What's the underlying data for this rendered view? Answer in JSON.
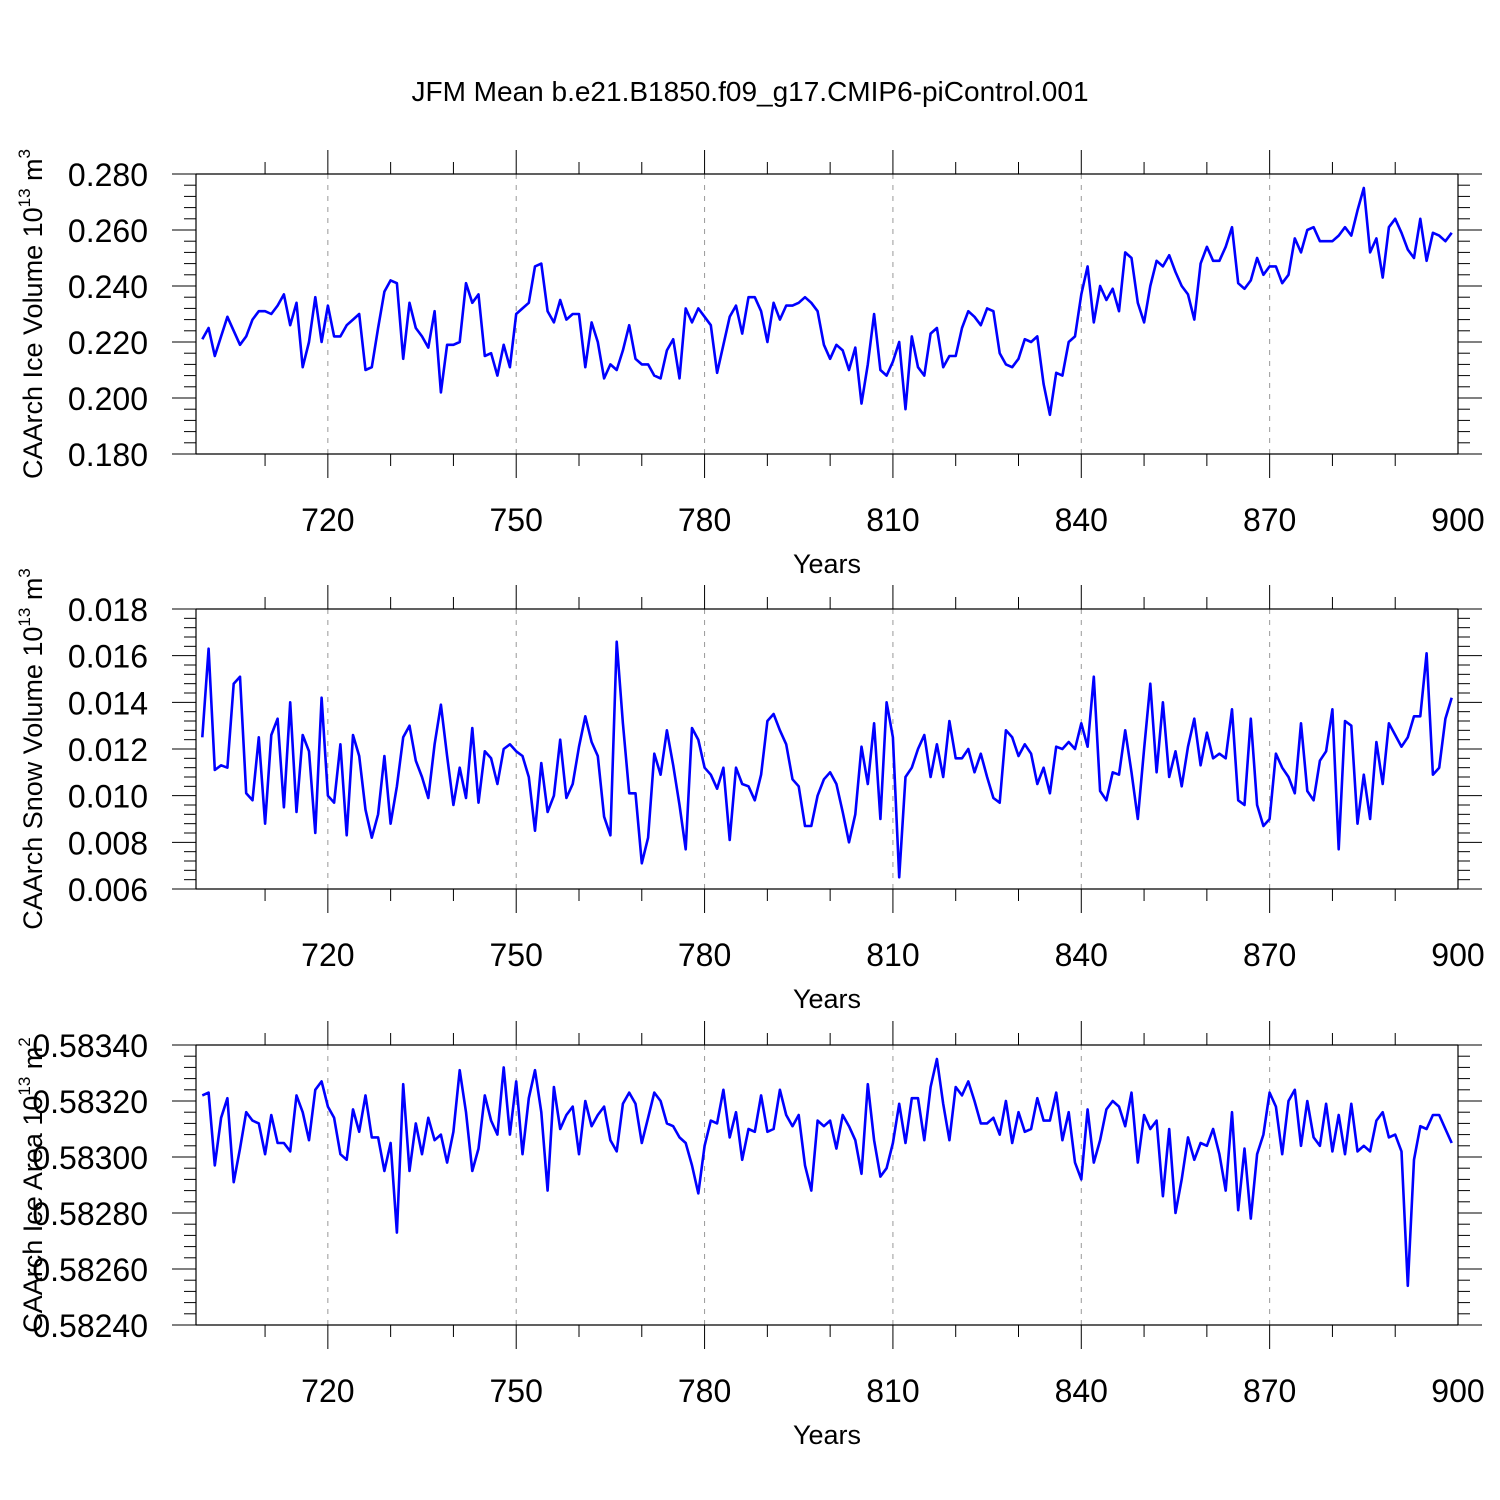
{
  "chart_data": [
    {
      "type": "line",
      "title": "JFM Mean b.e21.B1850.f09_g17.CMIP6-piControl.001",
      "xlabel": "Years",
      "ylabel": {
        "base": "CAArch Ice Volume 10",
        "exp": "13",
        "unit": " m",
        "unitexp": "3"
      },
      "xlim": [
        699,
        900
      ],
      "xticks": [
        720,
        750,
        780,
        810,
        840,
        870,
        900
      ],
      "ylim": [
        0.18,
        0.28
      ],
      "yticks": [
        "0.180",
        "0.200",
        "0.220",
        "0.240",
        "0.260",
        "0.280"
      ],
      "x_start": 700,
      "values": [
        0.221,
        0.225,
        0.215,
        0.222,
        0.229,
        0.224,
        0.219,
        0.222,
        0.228,
        0.231,
        0.231,
        0.23,
        0.233,
        0.237,
        0.226,
        0.234,
        0.211,
        0.22,
        0.236,
        0.22,
        0.233,
        0.222,
        0.222,
        0.226,
        0.228,
        0.23,
        0.21,
        0.211,
        0.225,
        0.238,
        0.242,
        0.241,
        0.214,
        0.234,
        0.225,
        0.222,
        0.218,
        0.231,
        0.202,
        0.219,
        0.219,
        0.22,
        0.241,
        0.234,
        0.237,
        0.215,
        0.216,
        0.208,
        0.219,
        0.211,
        0.23,
        0.232,
        0.234,
        0.247,
        0.248,
        0.231,
        0.227,
        0.235,
        0.228,
        0.23,
        0.23,
        0.211,
        0.227,
        0.22,
        0.207,
        0.212,
        0.21,
        0.217,
        0.226,
        0.214,
        0.212,
        0.212,
        0.208,
        0.207,
        0.217,
        0.221,
        0.207,
        0.232,
        0.227,
        0.232,
        0.229,
        0.226,
        0.209,
        0.219,
        0.229,
        0.233,
        0.223,
        0.236,
        0.236,
        0.231,
        0.22,
        0.234,
        0.228,
        0.233,
        0.233,
        0.234,
        0.236,
        0.234,
        0.231,
        0.219,
        0.214,
        0.219,
        0.217,
        0.21,
        0.218,
        0.198,
        0.212,
        0.23,
        0.21,
        0.208,
        0.213,
        0.22,
        0.196,
        0.222,
        0.211,
        0.208,
        0.223,
        0.225,
        0.211,
        0.215,
        0.215,
        0.225,
        0.231,
        0.229,
        0.226,
        0.232,
        0.231,
        0.216,
        0.212,
        0.211,
        0.214,
        0.221,
        0.22,
        0.222,
        0.205,
        0.194,
        0.209,
        0.208,
        0.22,
        0.222,
        0.237,
        0.247,
        0.227,
        0.24,
        0.235,
        0.239,
        0.231,
        0.252,
        0.25,
        0.234,
        0.227,
        0.24,
        0.249,
        0.247,
        0.251,
        0.245,
        0.24,
        0.237,
        0.228,
        0.248,
        0.254,
        0.249,
        0.249,
        0.254,
        0.261,
        0.241,
        0.239,
        0.242,
        0.25,
        0.244,
        0.247,
        0.247,
        0.241,
        0.244,
        0.257,
        0.252,
        0.26,
        0.261,
        0.256,
        0.256,
        0.256,
        0.258,
        0.261,
        0.258,
        0.267,
        0.275,
        0.252,
        0.257,
        0.243,
        0.261,
        0.264,
        0.259,
        0.253,
        0.25,
        0.264,
        0.249,
        0.259,
        0.258,
        0.256,
        0.259
      ]
    },
    {
      "type": "line",
      "xlabel": "Years",
      "ylabel": {
        "base": "CAArch Snow Volume 10",
        "exp": "13",
        "unit": " m",
        "unitexp": "3"
      },
      "xlim": [
        699,
        900
      ],
      "xticks": [
        720,
        750,
        780,
        810,
        840,
        870,
        900
      ],
      "ylim": [
        0.006,
        0.018
      ],
      "yticks": [
        "0.006",
        "0.008",
        "0.010",
        "0.012",
        "0.014",
        "0.016",
        "0.018"
      ],
      "x_start": 700,
      "values": [
        0.0125,
        0.0163,
        0.0111,
        0.0113,
        0.0112,
        0.0148,
        0.0151,
        0.0101,
        0.0098,
        0.0125,
        0.0088,
        0.0126,
        0.0133,
        0.0095,
        0.014,
        0.0093,
        0.0126,
        0.0119,
        0.0084,
        0.0142,
        0.01,
        0.0097,
        0.0122,
        0.0083,
        0.0126,
        0.0117,
        0.0094,
        0.0082,
        0.0092,
        0.0117,
        0.0088,
        0.0104,
        0.0125,
        0.013,
        0.0115,
        0.0108,
        0.0099,
        0.0122,
        0.0139,
        0.0117,
        0.0096,
        0.0112,
        0.0099,
        0.0129,
        0.0097,
        0.0119,
        0.0116,
        0.0105,
        0.012,
        0.0122,
        0.0119,
        0.0117,
        0.0108,
        0.0085,
        0.0114,
        0.0093,
        0.01,
        0.0124,
        0.0099,
        0.0105,
        0.0121,
        0.0134,
        0.0123,
        0.0117,
        0.0091,
        0.0083,
        0.0166,
        0.0131,
        0.0101,
        0.0101,
        0.0071,
        0.0082,
        0.0118,
        0.0109,
        0.0128,
        0.0113,
        0.0096,
        0.0077,
        0.0129,
        0.0124,
        0.0112,
        0.0109,
        0.0103,
        0.0112,
        0.0081,
        0.0112,
        0.0105,
        0.0104,
        0.0098,
        0.0109,
        0.0132,
        0.0135,
        0.0128,
        0.0122,
        0.0107,
        0.0104,
        0.0087,
        0.0087,
        0.01,
        0.0107,
        0.011,
        0.0105,
        0.0093,
        0.008,
        0.0092,
        0.0121,
        0.0105,
        0.0131,
        0.009,
        0.014,
        0.0125,
        0.0065,
        0.0108,
        0.0112,
        0.012,
        0.0126,
        0.0108,
        0.0122,
        0.0108,
        0.0132,
        0.0116,
        0.0116,
        0.012,
        0.011,
        0.0118,
        0.0108,
        0.0099,
        0.0097,
        0.0128,
        0.0125,
        0.0117,
        0.0122,
        0.0118,
        0.0105,
        0.0112,
        0.0101,
        0.0121,
        0.012,
        0.0123,
        0.012,
        0.0131,
        0.0121,
        0.0151,
        0.0102,
        0.0098,
        0.011,
        0.0109,
        0.0128,
        0.011,
        0.009,
        0.012,
        0.0148,
        0.011,
        0.014,
        0.0108,
        0.0119,
        0.0104,
        0.0121,
        0.0133,
        0.0113,
        0.0127,
        0.0116,
        0.0118,
        0.0116,
        0.0137,
        0.0098,
        0.0096,
        0.0133,
        0.0096,
        0.0087,
        0.009,
        0.0118,
        0.0112,
        0.0108,
        0.0101,
        0.0131,
        0.0102,
        0.0098,
        0.0115,
        0.0119,
        0.0137,
        0.0077,
        0.0132,
        0.013,
        0.0088,
        0.0109,
        0.009,
        0.0123,
        0.0105,
        0.0131,
        0.0126,
        0.0121,
        0.0125,
        0.0134,
        0.0134,
        0.0161,
        0.0109,
        0.0112,
        0.0133,
        0.0142
      ]
    },
    {
      "type": "line",
      "xlabel": "Years",
      "ylabel": {
        "base": "CAArch Ice Area 10",
        "exp": "13",
        "unit": " m",
        "unitexp": "2"
      },
      "xlim": [
        699,
        900
      ],
      "xticks": [
        720,
        750,
        780,
        810,
        840,
        870,
        900
      ],
      "ylim": [
        0.5824,
        0.5834
      ],
      "yticks": [
        "0.58240",
        "0.58260",
        "0.58280",
        "0.58300",
        "0.58320",
        "0.58340"
      ],
      "x_start": 700,
      "values": [
        0.58322,
        0.58323,
        0.58297,
        0.58314,
        0.58321,
        0.58291,
        0.58303,
        0.58316,
        0.58313,
        0.58312,
        0.58301,
        0.58315,
        0.58305,
        0.58305,
        0.58302,
        0.58322,
        0.58316,
        0.58306,
        0.58324,
        0.58327,
        0.58318,
        0.58314,
        0.58301,
        0.58299,
        0.58317,
        0.58309,
        0.58322,
        0.58307,
        0.58307,
        0.58295,
        0.58305,
        0.58273,
        0.58326,
        0.58295,
        0.58312,
        0.58301,
        0.58314,
        0.58306,
        0.58308,
        0.58298,
        0.58309,
        0.58331,
        0.58316,
        0.58295,
        0.58303,
        0.58322,
        0.58313,
        0.58308,
        0.58332,
        0.58308,
        0.58327,
        0.58301,
        0.58321,
        0.58331,
        0.58316,
        0.58288,
        0.58325,
        0.5831,
        0.58315,
        0.58318,
        0.58301,
        0.5832,
        0.58311,
        0.58315,
        0.58318,
        0.58306,
        0.58302,
        0.58319,
        0.58323,
        0.58319,
        0.58305,
        0.58314,
        0.58323,
        0.5832,
        0.58312,
        0.58311,
        0.58307,
        0.58305,
        0.58297,
        0.58287,
        0.58304,
        0.58313,
        0.58312,
        0.58324,
        0.58307,
        0.58316,
        0.58299,
        0.5831,
        0.58309,
        0.58322,
        0.58309,
        0.5831,
        0.58324,
        0.58315,
        0.58311,
        0.58315,
        0.58297,
        0.58288,
        0.58313,
        0.58311,
        0.58313,
        0.58303,
        0.58315,
        0.58311,
        0.58306,
        0.58294,
        0.58326,
        0.58306,
        0.58293,
        0.58296,
        0.58305,
        0.58319,
        0.58305,
        0.58321,
        0.58321,
        0.58306,
        0.58325,
        0.58335,
        0.58319,
        0.58306,
        0.58325,
        0.58322,
        0.58327,
        0.5832,
        0.58312,
        0.58312,
        0.58314,
        0.58308,
        0.5832,
        0.58305,
        0.58316,
        0.58309,
        0.5831,
        0.58321,
        0.58313,
        0.58313,
        0.58323,
        0.58306,
        0.58316,
        0.58298,
        0.58292,
        0.58317,
        0.58298,
        0.58306,
        0.58317,
        0.5832,
        0.58318,
        0.58311,
        0.58323,
        0.58298,
        0.58315,
        0.5831,
        0.58313,
        0.58286,
        0.5831,
        0.5828,
        0.58292,
        0.58307,
        0.58299,
        0.58305,
        0.58304,
        0.5831,
        0.58301,
        0.58288,
        0.58316,
        0.58281,
        0.58303,
        0.58278,
        0.58301,
        0.58308,
        0.58323,
        0.58318,
        0.58301,
        0.5832,
        0.58324,
        0.58304,
        0.5832,
        0.58307,
        0.58304,
        0.58319,
        0.58302,
        0.58315,
        0.58301,
        0.58319,
        0.58302,
        0.58304,
        0.58302,
        0.58313,
        0.58316,
        0.58307,
        0.58308,
        0.58302,
        0.58254,
        0.58299,
        0.58311,
        0.5831,
        0.58315,
        0.58315,
        0.5831,
        0.58305
      ]
    }
  ]
}
